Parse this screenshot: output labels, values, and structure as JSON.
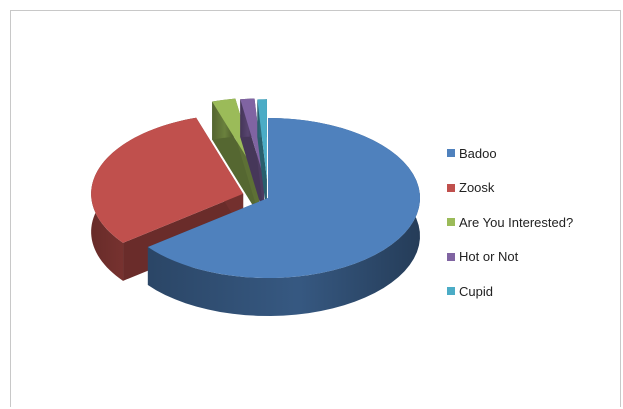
{
  "chart_data": {
    "type": "pie",
    "style": "3d-exploded",
    "title": "",
    "legend_position": "right",
    "categories": [
      "Badoo",
      "Zoosk",
      "Are You Interested?",
      "Hot or Not",
      "Cupid"
    ],
    "values": [
      64.5,
      30.5,
      2.5,
      1.5,
      1.0
    ],
    "colors": [
      "#4f81bd",
      "#c0504d",
      "#9bbb59",
      "#8064a2",
      "#4bacc6"
    ]
  }
}
